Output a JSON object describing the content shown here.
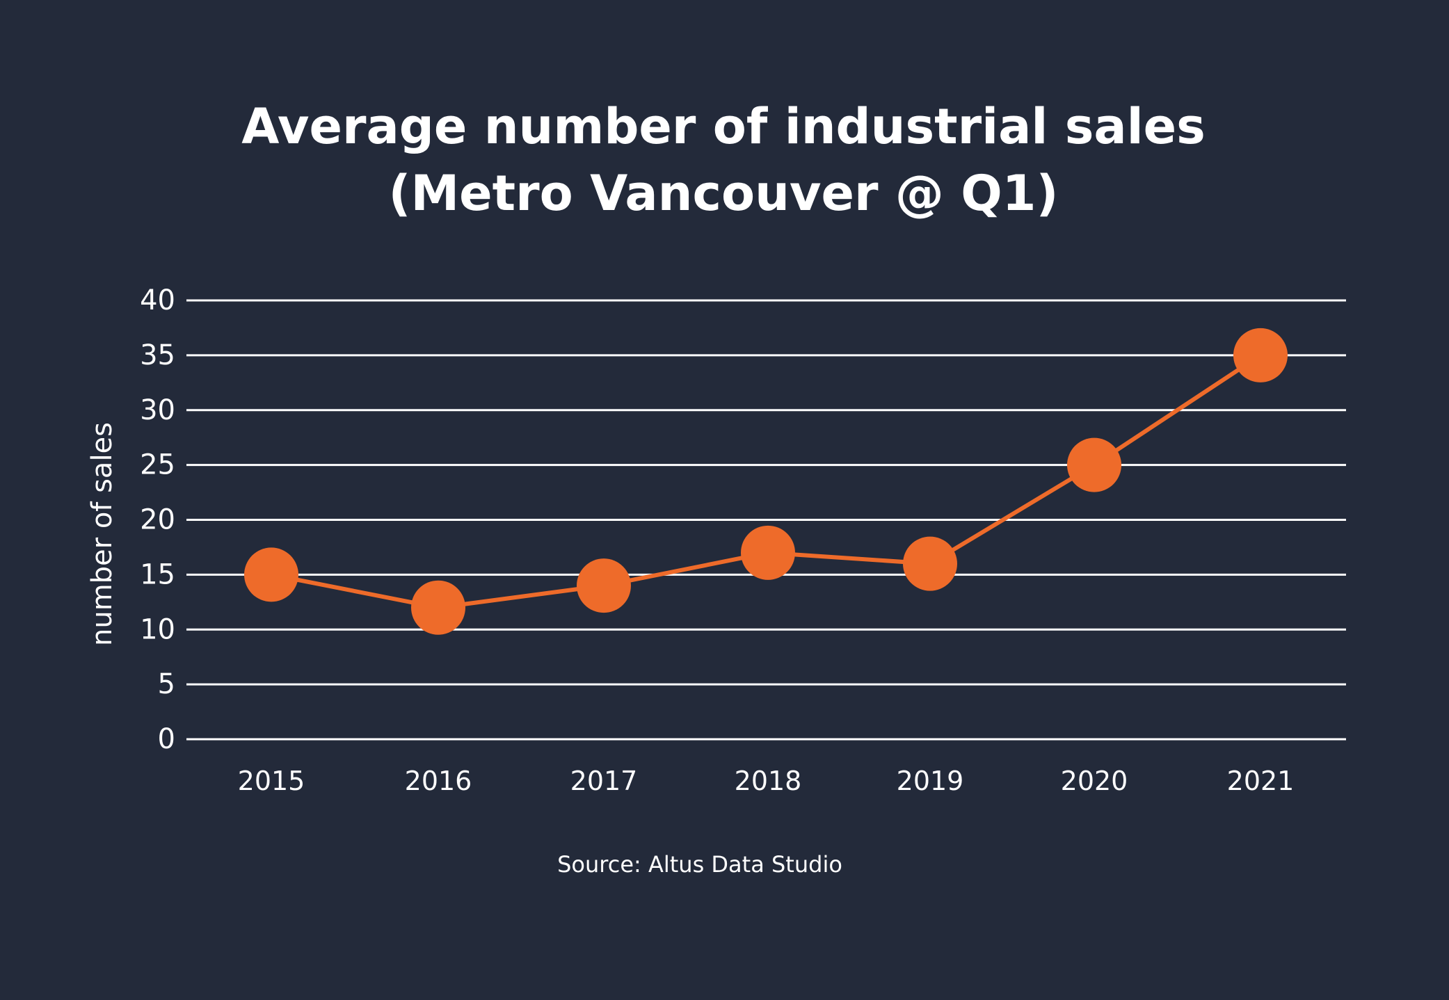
{
  "chart_data": {
    "type": "line",
    "title_lines": [
      "Average number of industrial sales",
      "(Metro Vancouver @ Q1)"
    ],
    "ylabel": "number of sales",
    "xlabel": "",
    "categories": [
      "2015",
      "2016",
      "2017",
      "2018",
      "2019",
      "2020",
      "2021"
    ],
    "values": [
      15,
      12,
      14,
      17,
      16,
      25,
      35
    ],
    "ylim": [
      0,
      40
    ],
    "yticks": [
      0,
      5,
      10,
      15,
      20,
      25,
      30,
      35,
      40
    ],
    "grid": true,
    "legend": "none",
    "source": "Source: Altus Data Studio",
    "colors": {
      "background": "#232a3a",
      "series": "#ee6b2a",
      "text": "#ffffff",
      "grid": "#ffffff"
    }
  }
}
